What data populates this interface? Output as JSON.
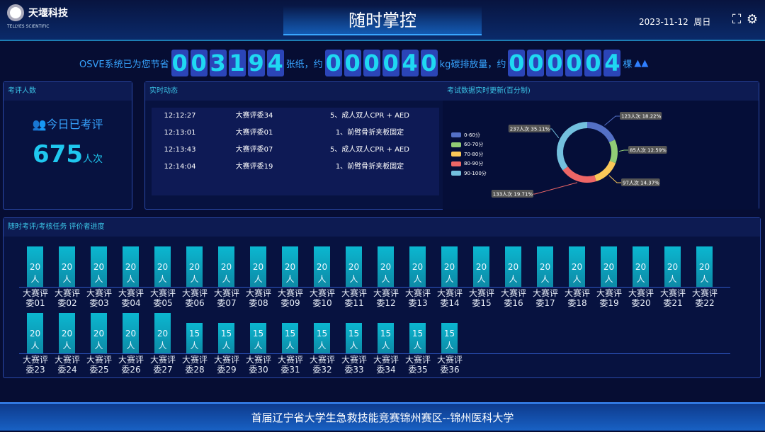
{
  "header": {
    "brand": "天堰科技",
    "brand_sub": "TELLYES SCIENTIFIC",
    "title": "随时掌控",
    "date": "2023-11-12",
    "weekday": "周日"
  },
  "counter": {
    "prefix": "OSVE系统已为您节省",
    "paper": "003194",
    "paper_unit": "张纸，约",
    "carbon": "000040",
    "carbon_unit": "kg碳排放量，约",
    "trees": "000004",
    "tree_unit": "棵"
  },
  "left_panel": {
    "title": "考评人数",
    "subtitle": "今日已考评",
    "count": "675",
    "unit": "人次"
  },
  "feed": {
    "title": "实时动态",
    "rows": [
      [
        "12:12:27",
        "大赛评委34",
        "5、成人双人CPR + AED"
      ],
      [
        "12:13:01",
        "大赛评委01",
        "1、前臂骨折夹板固定"
      ],
      [
        "12:13:43",
        "大赛评委07",
        "5、成人双人CPR + AED"
      ],
      [
        "12:14:04",
        "大赛评委19",
        "1、前臂骨折夹板固定"
      ]
    ]
  },
  "chart_data": [
    {
      "type": "pie",
      "title": "考试数据实时更新(百分制)",
      "legend_placement": "left",
      "categories": [
        "0-60分",
        "60-70分",
        "70-80分",
        "80-90分",
        "90-100分"
      ],
      "values": [
        123,
        85,
        97,
        133,
        237
      ],
      "percents": [
        18.22,
        12.59,
        14.37,
        19.71,
        35.11
      ],
      "labels": [
        "123人次 18.22%",
        "85人次 12.59%",
        "97人次 14.37%",
        "133人次 19.71%",
        "237人次 35.11%"
      ],
      "colors": [
        "#5470c6",
        "#91cc75",
        "#fac858",
        "#ee6666",
        "#73c0de"
      ]
    },
    {
      "type": "bar",
      "title": "随时考评/考核任务 评价者进度",
      "unit": "人",
      "color": "#0bb7d0",
      "categories": [
        "大赛评委01",
        "大赛评委02",
        "大赛评委03",
        "大赛评委04",
        "大赛评委05",
        "大赛评委06",
        "大赛评委07",
        "大赛评委08",
        "大赛评委09",
        "大赛评委10",
        "大赛评委11",
        "大赛评委12",
        "大赛评委13",
        "大赛评委14",
        "大赛评委15",
        "大赛评委16",
        "大赛评委17",
        "大赛评委18",
        "大赛评委19",
        "大赛评委20",
        "大赛评委21",
        "大赛评委22",
        "大赛评委23",
        "大赛评委24",
        "大赛评委25",
        "大赛评委26",
        "大赛评委27",
        "大赛评委28",
        "大赛评委29",
        "大赛评委30",
        "大赛评委31",
        "大赛评委32",
        "大赛评委33",
        "大赛评委34",
        "大赛评委35",
        "大赛评委36"
      ],
      "values": [
        20,
        20,
        20,
        20,
        20,
        20,
        20,
        20,
        20,
        20,
        20,
        20,
        20,
        20,
        20,
        20,
        20,
        20,
        20,
        20,
        20,
        20,
        20,
        20,
        20,
        20,
        20,
        15,
        15,
        15,
        15,
        15,
        15,
        15,
        15,
        15
      ]
    }
  ],
  "footer": "首届辽宁省大学生急救技能竞赛锦州赛区--锦州医科大学"
}
